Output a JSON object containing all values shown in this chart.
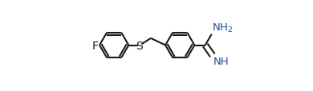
{
  "bg_color": "#ffffff",
  "bond_color": "#1a1a1a",
  "F_color": "#1a1a1a",
  "S_color": "#1a1a1a",
  "NH_color": "#1a4d8f",
  "lw": 1.5,
  "dbo": 0.018,
  "r": 0.115,
  "fig_width": 3.9,
  "fig_height": 1.15,
  "dpi": 100,
  "xlim": [
    0.0,
    1.3
  ],
  "ylim": [
    0.12,
    0.88
  ]
}
